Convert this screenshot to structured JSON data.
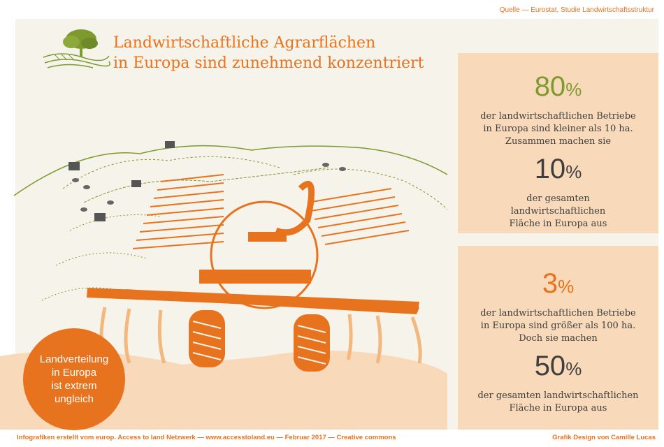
{
  "source": "Quelle  — Eurostat,  Studie Landwirtschaftsstruktur",
  "title_line1": "Landwirtschaftliche Agrarflächen",
  "title_line2": "in Europa sind zunehmend konzentriert",
  "stats": {
    "box1": {
      "value1": "80",
      "value1_unit": "%",
      "text1": [
        "der landwirtschaftlichen Betriebe",
        "in Europa sind kleiner als 10 ha.",
        "Zusammen machen sie"
      ],
      "value2": "10",
      "value2_unit": "%",
      "text2": [
        "der gesamten",
        "landwirtschaftlichen",
        "Fläche in Europa aus"
      ]
    },
    "box2": {
      "value1": "3",
      "value1_unit": "%",
      "text1": [
        "der landwirtschaftlichen Betriebe",
        "in Europa sind größer als 100 ha.",
        "Doch sie machen"
      ],
      "value2": "50",
      "value2_unit": "%",
      "text2": [
        "der gesamten landwirtschaftlichen",
        "Fläche in Europa aus"
      ]
    }
  },
  "circle_text": [
    "Landverteilung",
    "in Europa",
    "ist extrem",
    "ungleich"
  ],
  "footer_left": "Infografiken erstellt vom europ. Access to land Netzwerk  — www.accesstoland.eu — Februar 2017 — Creative commons",
  "footer_right": "Grafik Design von Camille Lucas",
  "colors": {
    "orange": "#e8731e",
    "green": "#7d9a2f",
    "box": "#f8d9b9",
    "background": "#f6f3ea",
    "dark": "#3e3e3e"
  }
}
